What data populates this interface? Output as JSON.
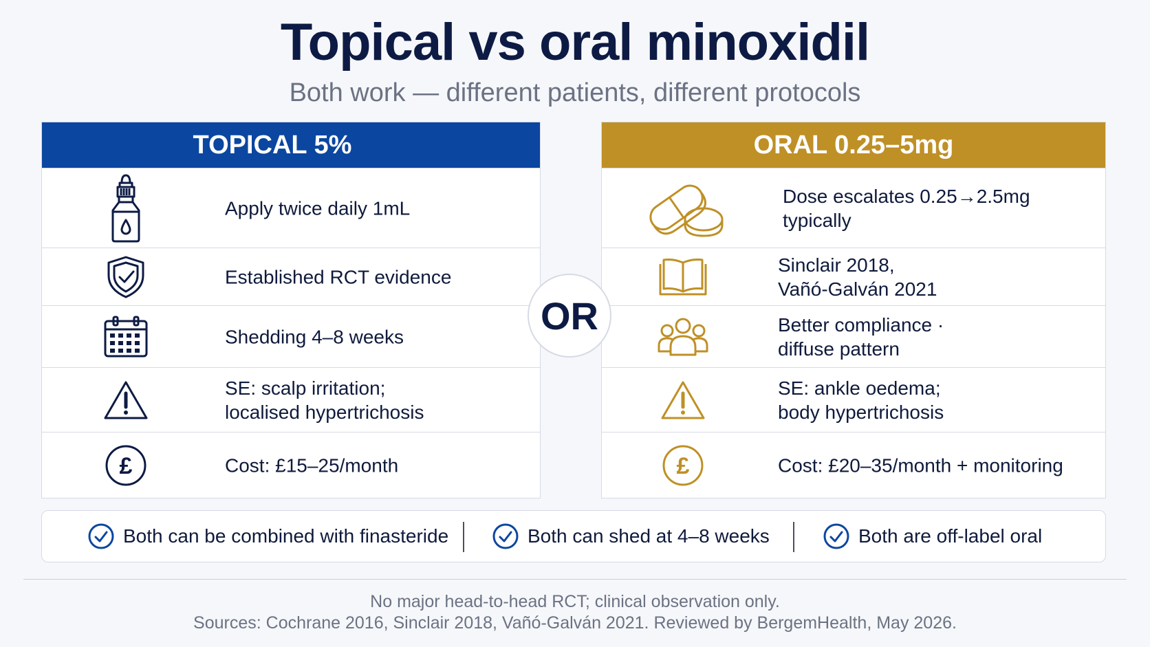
{
  "title": "Topical vs oral minoxidil",
  "subtitle": "Both work — different patients, different protocols",
  "colors": {
    "topical": "#0b46a0",
    "oral": "#bf9026",
    "navy": "#0d1b44"
  },
  "topical": {
    "header": "TOPICAL 5%",
    "rows": [
      {
        "icon": "dropper-bottle-icon",
        "lines": [
          "Apply twice daily 1mL"
        ]
      },
      {
        "icon": "shield-check-icon",
        "lines": [
          "Established RCT evidence"
        ]
      },
      {
        "icon": "calendar-icon",
        "lines": [
          "Shedding 4–8 weeks"
        ]
      },
      {
        "icon": "warning-icon",
        "lines": [
          "SE: scalp irritation;",
          "localised hypertrichosis"
        ]
      },
      {
        "icon": "pound-coin-icon",
        "lines": [
          "Cost: £15–25/month"
        ]
      }
    ]
  },
  "oral": {
    "header": "ORAL 0.25–5mg",
    "rows": [
      {
        "icon": "pills-icon",
        "lines": [
          "Dose escalates 0.25→2.5mg",
          "typically"
        ]
      },
      {
        "icon": "book-icon",
        "lines": [
          "Sinclair 2018,",
          "Vañó-Galván 2021"
        ]
      },
      {
        "icon": "people-icon",
        "lines": [
          "Better compliance ·",
          "diffuse pattern"
        ]
      },
      {
        "icon": "warning-icon",
        "lines": [
          "SE: ankle oedema;",
          "body hypertrichosis"
        ]
      },
      {
        "icon": "pound-coin-icon",
        "lines": [
          "Cost: £20–35/month + monitoring"
        ]
      }
    ]
  },
  "or_label": "OR",
  "banner": [
    {
      "icon": "check-circle-icon",
      "text": "Both can be combined with finasteride"
    },
    {
      "icon": "check-circle-icon",
      "text": "Both can shed at 4–8 weeks"
    },
    {
      "icon": "check-circle-icon",
      "text": "Both are off-label oral"
    }
  ],
  "footer": {
    "note": "No major head-to-head RCT; clinical observation only.",
    "sources": "Sources: Cochrane 2016, Sinclair 2018, Vañó-Galván 2021. Reviewed by BergemHealth, May 2026."
  }
}
